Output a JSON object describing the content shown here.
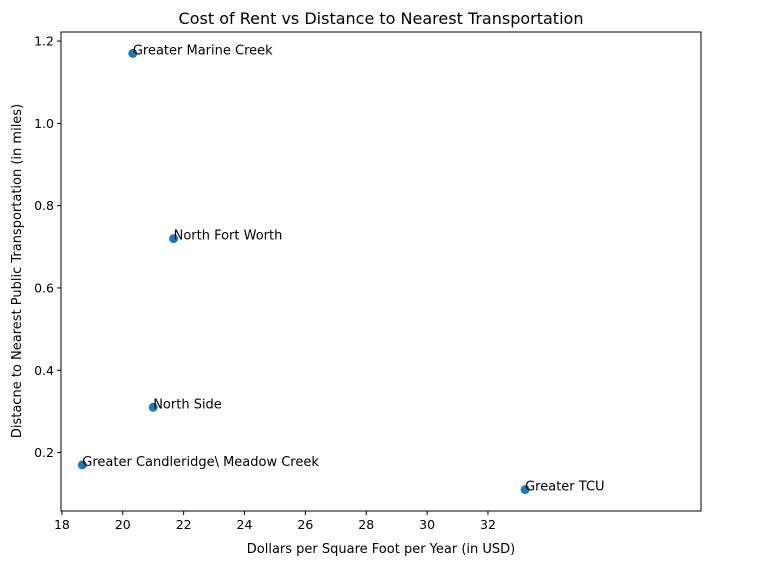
{
  "chart_data": {
    "type": "scatter",
    "title": "Cost of Rent vs Distance to Nearest Transportation",
    "xlabel": "Dollars per Square Foot per Year (in USD)",
    "ylabel": "Distacne to Nearest Public Transportation (in miles)",
    "xlim": [
      17.97,
      39.0
    ],
    "ylim": [
      0.058,
      1.222
    ],
    "xticks": [
      18,
      20,
      22,
      24,
      26,
      28,
      30,
      32
    ],
    "xtick_labels": [
      "18",
      "20",
      "22",
      "24",
      "26",
      "28",
      "30",
      "32"
    ],
    "yticks": [
      0.2,
      0.4,
      0.6,
      0.8,
      1.0,
      1.2
    ],
    "ytick_labels": [
      "0.2",
      "0.4",
      "0.6",
      "0.8",
      "1.0",
      "1.2"
    ],
    "grid": false,
    "point_color": "#1f77b4",
    "points": [
      {
        "label": "Greater Marine Creek",
        "x": 20.33,
        "y": 1.17
      },
      {
        "label": "North Fort Worth",
        "x": 21.67,
        "y": 0.72
      },
      {
        "label": "North Side",
        "x": 21.0,
        "y": 0.31
      },
      {
        "label": "Greater Candleridge\\ Meadow Creek",
        "x": 18.67,
        "y": 0.17
      },
      {
        "label": "Greater TCU",
        "x": 33.22,
        "y": 0.11
      }
    ]
  }
}
